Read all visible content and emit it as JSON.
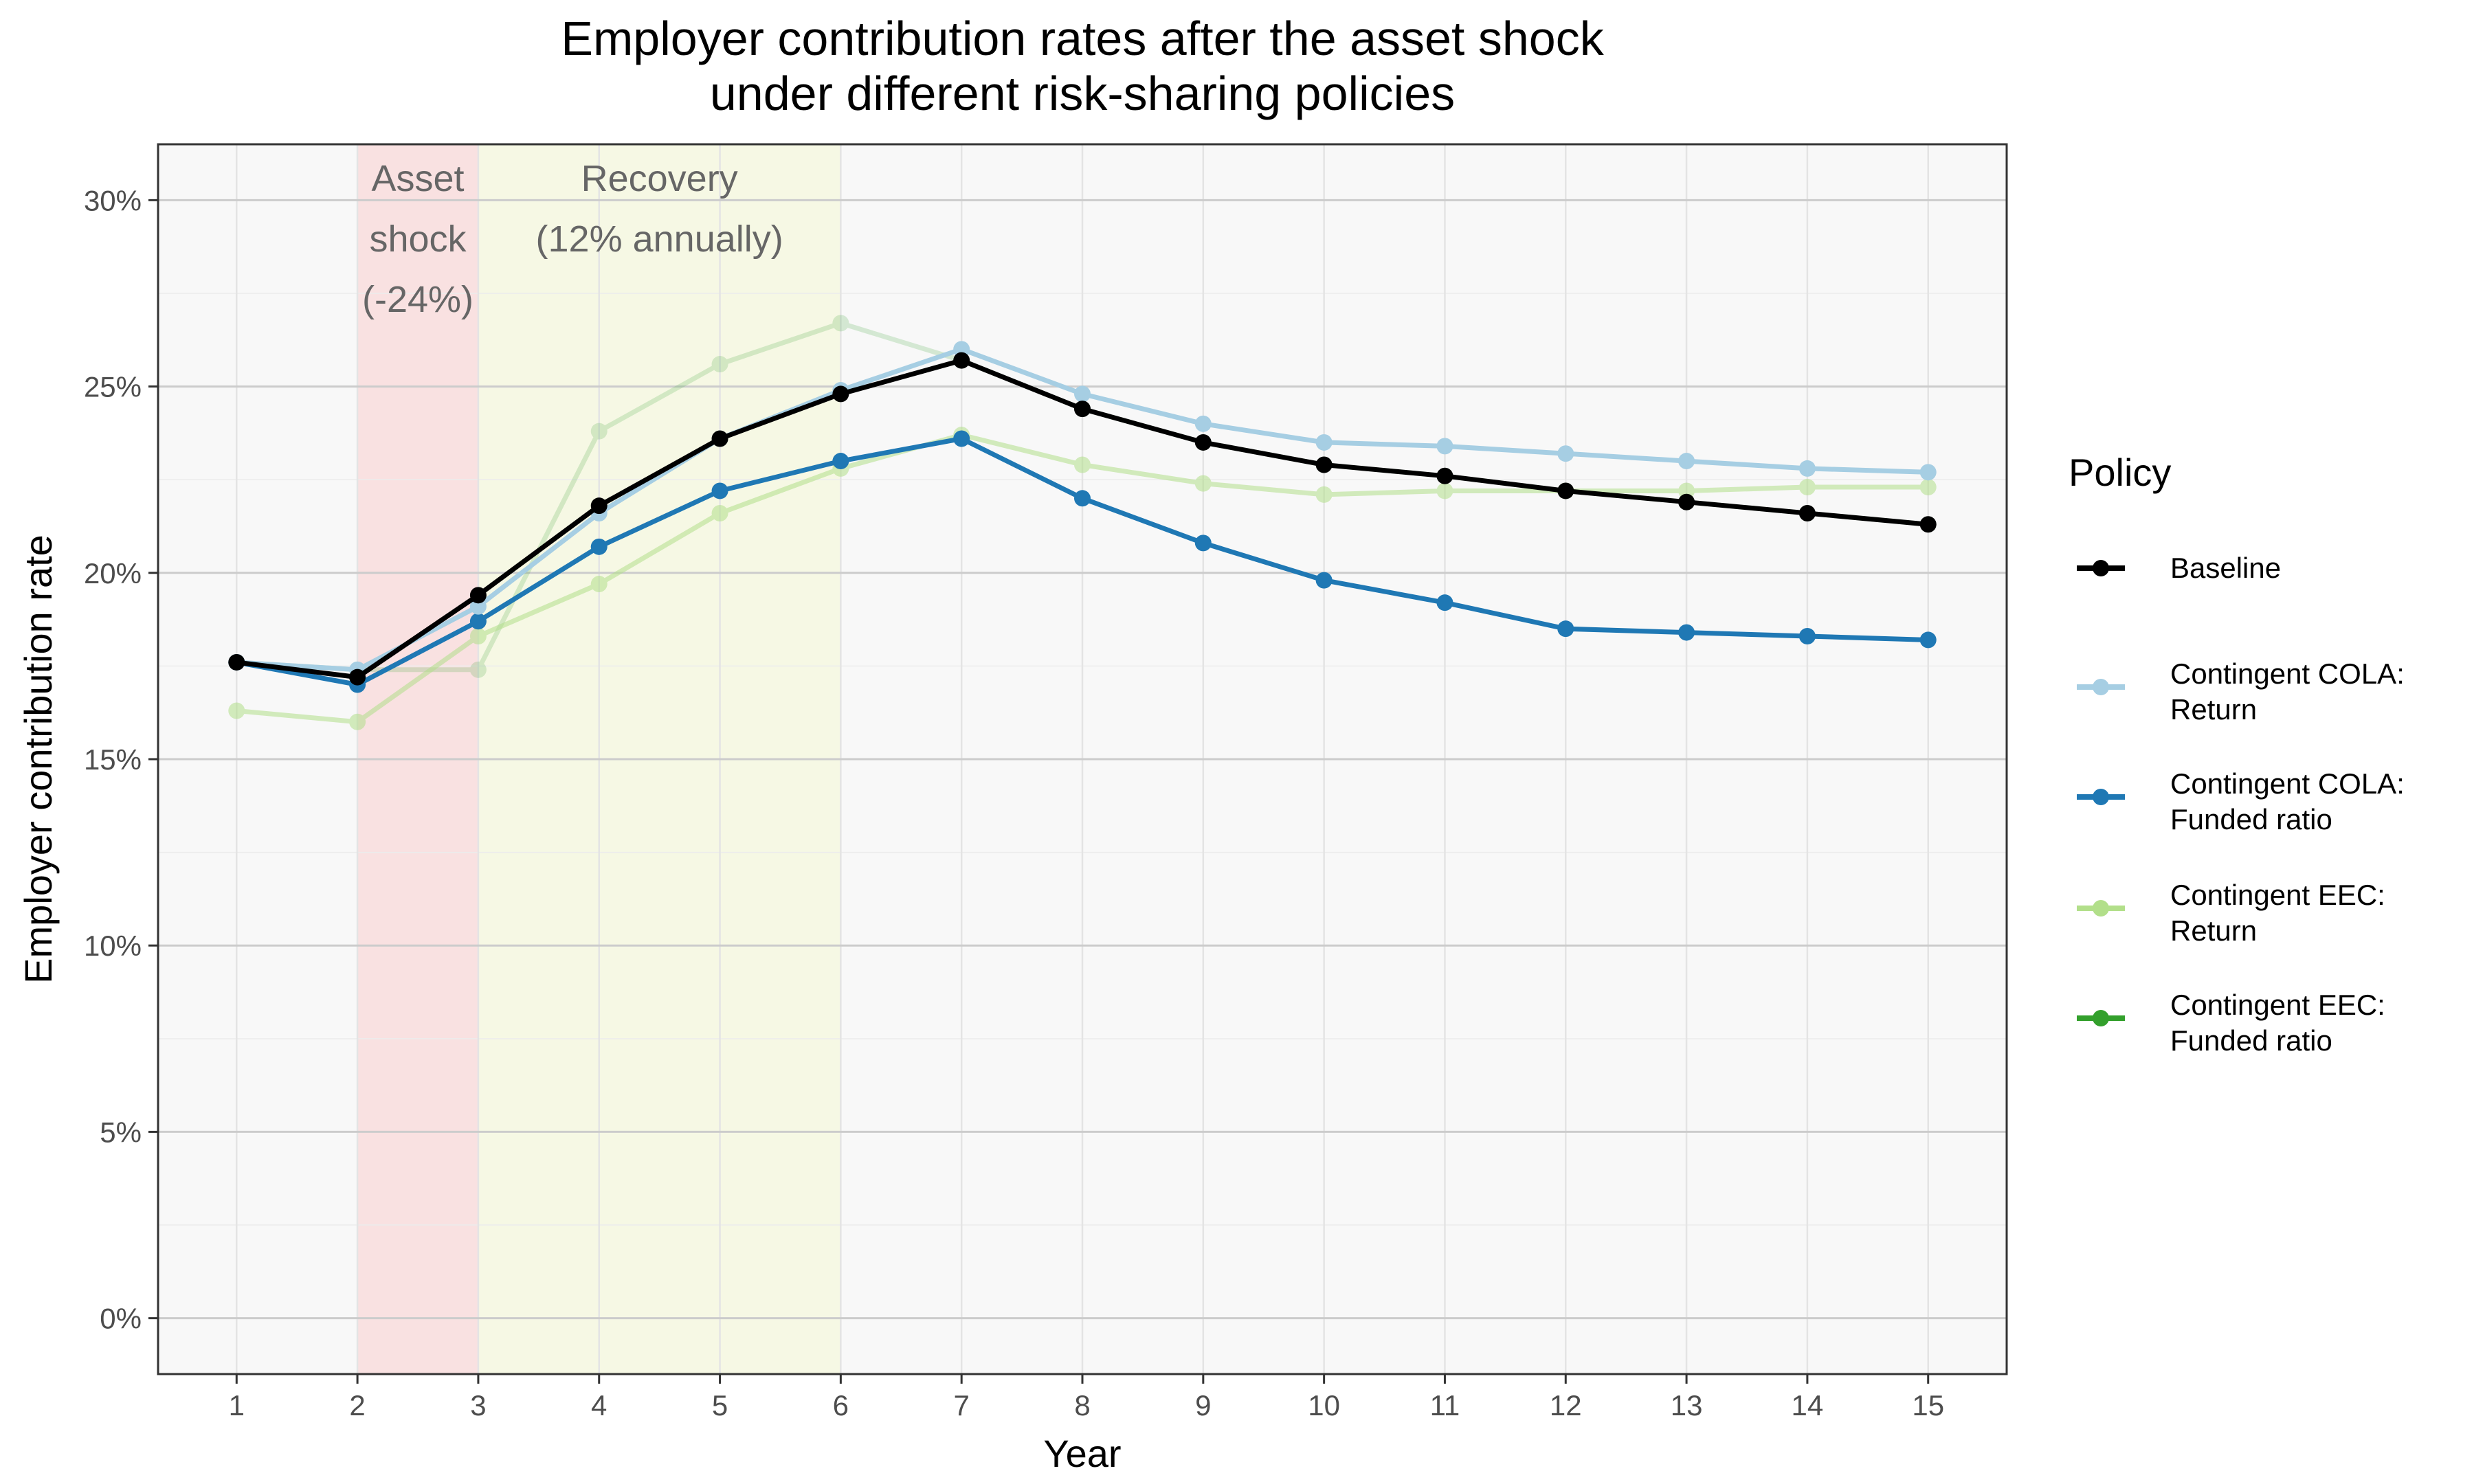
{
  "chart_data": {
    "type": "line",
    "title": [
      "Employer contribution rates after the asset shock",
      "under different risk-sharing policies"
    ],
    "xlabel": "Year",
    "ylabel": "Employer contribution rate",
    "x": [
      1,
      2,
      3,
      4,
      5,
      6,
      7,
      8,
      9,
      10,
      11,
      12,
      13,
      14,
      15
    ],
    "x_ticks": [
      "1",
      "2",
      "3",
      "4",
      "5",
      "6",
      "7",
      "8",
      "9",
      "10",
      "11",
      "12",
      "13",
      "14",
      "15"
    ],
    "xlim": [
      0.35,
      15.65
    ],
    "ylim": [
      -0.015,
      0.315
    ],
    "y_ticks": [
      0,
      0.05,
      0.1,
      0.15,
      0.2,
      0.25,
      0.3
    ],
    "y_tick_labels": [
      "0%",
      "5%",
      "10%",
      "15%",
      "20%",
      "25%",
      "30%"
    ],
    "grid": true,
    "legend": {
      "title": "Policy",
      "position": "right"
    },
    "shaded_regions": [
      {
        "x_start": 2,
        "x_end": 3,
        "color": "#f9e1e1",
        "label_lines": [
          "Asset",
          "shock",
          "(-24%)"
        ]
      },
      {
        "x_start": 3,
        "x_end": 6,
        "color": "#f6f8e4",
        "label_lines": [
          "Recovery",
          "(12% annually)"
        ]
      }
    ],
    "series": [
      {
        "name": "Baseline",
        "color": "#000000",
        "opacity": 1,
        "values": [
          0.176,
          0.172,
          0.194,
          0.218,
          0.236,
          0.248,
          0.257,
          0.244,
          0.235,
          0.229,
          0.226,
          0.222,
          0.219,
          0.216,
          0.213
        ]
      },
      {
        "name": "Contingent COLA:\nReturn",
        "color": "#a6cee3",
        "opacity": 1,
        "values": [
          0.176,
          0.174,
          0.191,
          0.216,
          0.236,
          0.249,
          0.26,
          0.248,
          0.24,
          0.235,
          0.234,
          0.232,
          0.23,
          0.228,
          0.227
        ]
      },
      {
        "name": "Contingent COLA:\nFunded ratio",
        "color": "#1f78b4",
        "opacity": 1,
        "values": [
          0.176,
          0.17,
          0.187,
          0.207,
          0.222,
          0.23,
          0.236,
          0.22,
          0.208,
          0.198,
          0.192,
          0.185,
          0.184,
          0.183,
          0.182
        ]
      },
      {
        "name": "Contingent EEC:\nReturn",
        "color": "#b2df8a",
        "opacity": 0.55,
        "values": [
          0.163,
          0.16,
          0.183,
          0.197,
          0.216,
          0.228,
          0.237,
          0.229,
          0.224,
          0.221,
          0.222,
          0.222,
          0.222,
          0.223,
          0.223
        ]
      },
      {
        "name": "Contingent EEC:\nFunded ratio",
        "color": "#33a02c",
        "opacity": 0.18,
        "values": [
          0.176,
          0.174,
          0.174,
          0.238,
          0.256,
          0.267,
          0.257,
          0.244,
          0.235,
          0.229,
          0.226,
          0.222,
          0.219,
          0.216,
          0.213
        ]
      }
    ]
  }
}
